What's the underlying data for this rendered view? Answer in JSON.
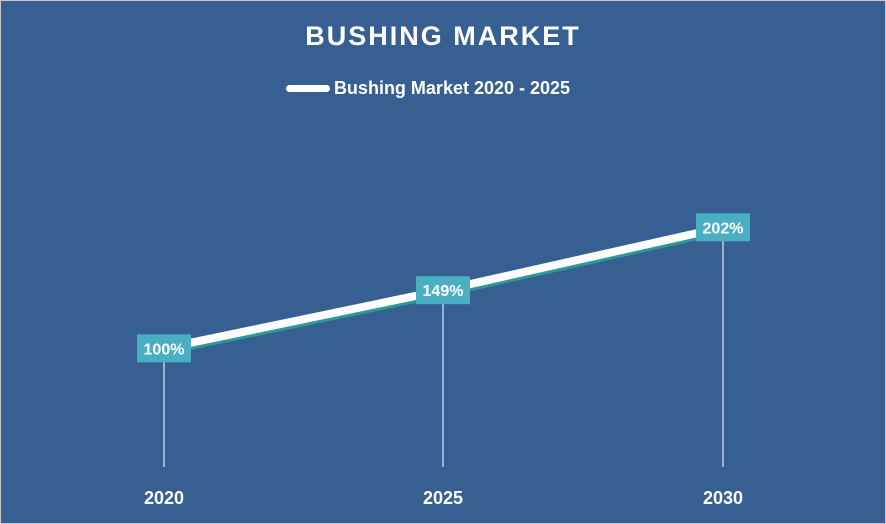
{
  "chart_data": {
    "type": "line",
    "title": "BUSHING MARKET",
    "categories": [
      "2020",
      "2025",
      "2030"
    ],
    "series": [
      {
        "name": "Bushing Market 2020 - 2025",
        "values": [
          100,
          149,
          202
        ],
        "data_labels": [
          "100%",
          "149%",
          "202%"
        ]
      }
    ],
    "ylim": [
      0,
      300
    ],
    "grid": false,
    "legend_position": "top",
    "colors": {
      "background": "#375f91",
      "line": "#ffffff",
      "line_shadow": "#2e9a98",
      "label_box": "#4aafc3",
      "drop_line": "#dce6f2",
      "text": "#ffffff"
    }
  }
}
